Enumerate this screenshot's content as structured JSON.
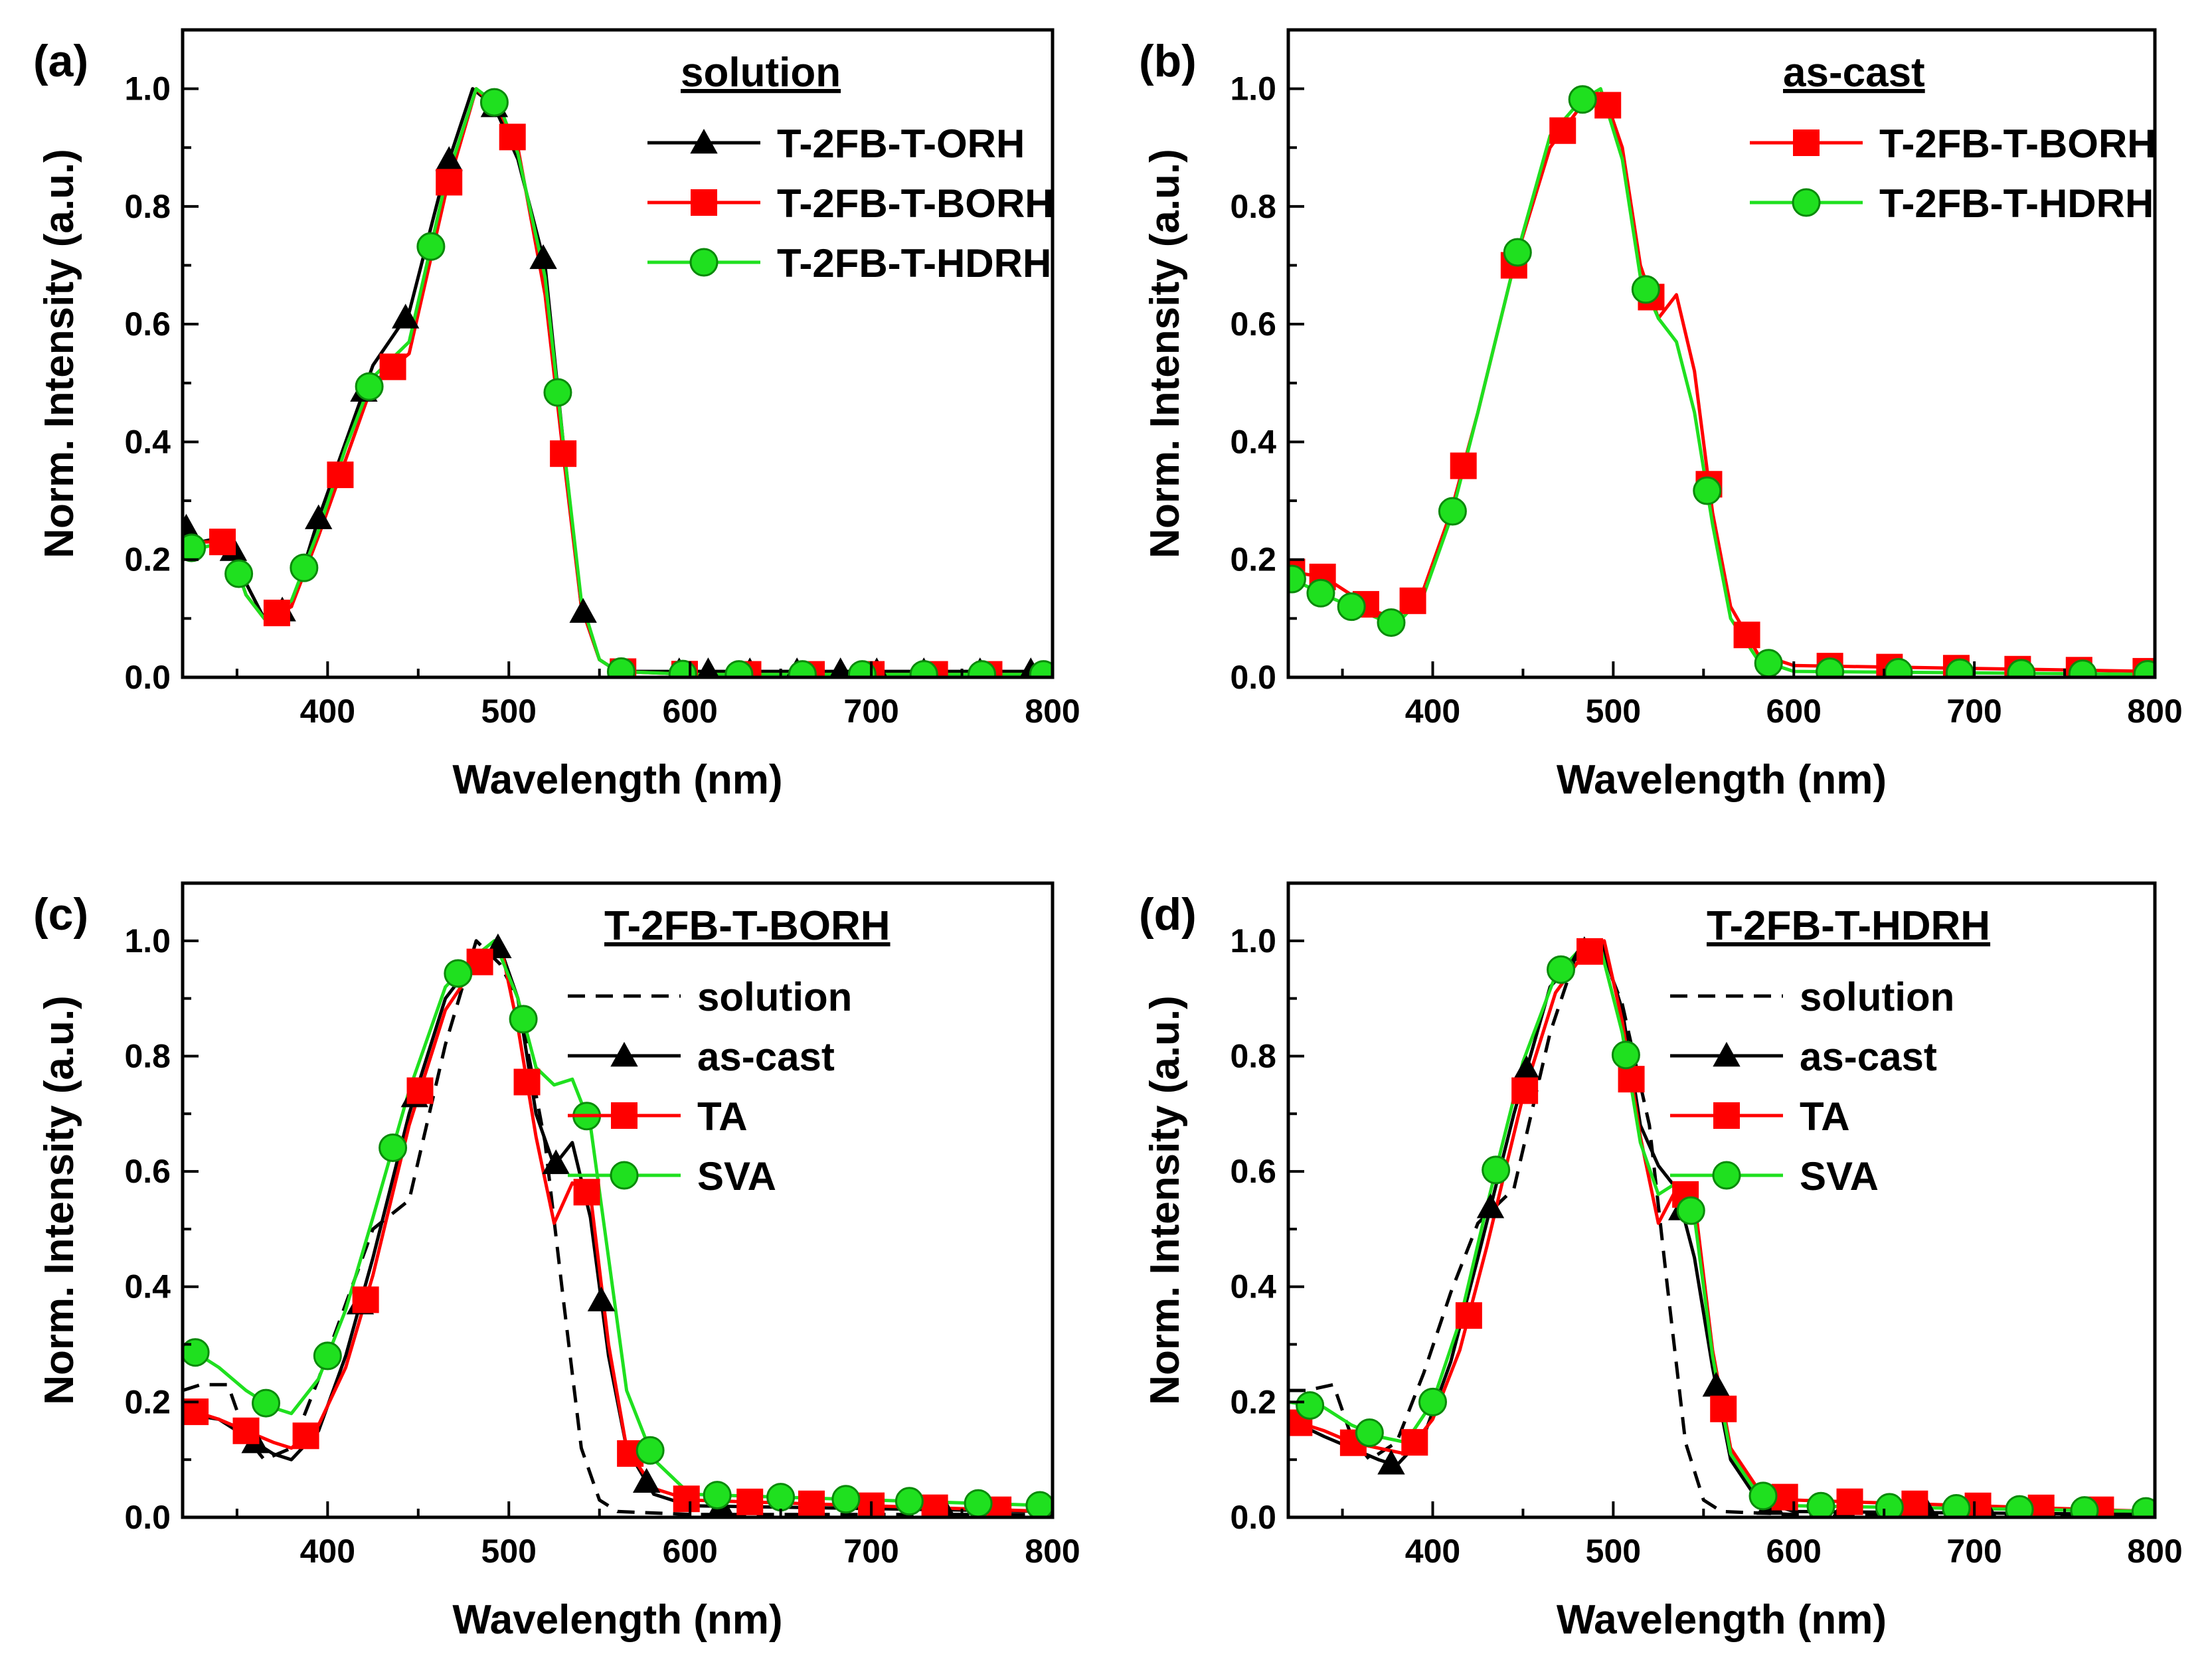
{
  "figure": {
    "colors": {
      "black": "#000000",
      "red": "#ff0000",
      "green": "#1fe01f",
      "marker_edge": "#0a8a0a"
    }
  },
  "chart_data": [
    {
      "panel": "(a)",
      "type": "line",
      "xlabel": "Wavelength (nm)",
      "ylabel": "Norm. Intensity (a.u.)",
      "xlim": [
        320,
        800
      ],
      "ylim": [
        0.0,
        1.1
      ],
      "xticks": [
        "400",
        "500",
        "600",
        "700",
        "800"
      ],
      "yticks": [
        "0.0",
        "0.2",
        "0.4",
        "0.6",
        "0.8",
        "1.0"
      ],
      "legend_title": "solution",
      "legend_position": "top-right",
      "series": [
        {
          "name": "T-2FB-T-ORH",
          "color": "#000000",
          "marker": "triangle",
          "dash": "solid",
          "x": [
            320,
            330,
            345,
            355,
            365,
            380,
            395,
            410,
            425,
            445,
            465,
            480,
            492,
            505,
            520,
            530,
            540,
            550,
            560,
            600,
            800
          ],
          "y": [
            0.26,
            0.23,
            0.24,
            0.16,
            0.1,
            0.12,
            0.27,
            0.4,
            0.53,
            0.62,
            0.86,
            1.0,
            0.97,
            0.88,
            0.7,
            0.4,
            0.12,
            0.03,
            0.01,
            0.01,
            0.01
          ],
          "markers_x": [
            322,
            348,
            375,
            395,
            420,
            443,
            467,
            492,
            519,
            541,
            562,
            594,
            610,
            633,
            659,
            683,
            703,
            729,
            760,
            788
          ]
        },
        {
          "name": "T-2FB-T-BORH",
          "color": "#ff0000",
          "marker": "square",
          "dash": "solid",
          "x": [
            320,
            330,
            345,
            355,
            365,
            380,
            395,
            410,
            425,
            445,
            465,
            482,
            495,
            505,
            520,
            530,
            540,
            550,
            560,
            600,
            800
          ],
          "y": [
            0.22,
            0.23,
            0.23,
            0.14,
            0.1,
            0.12,
            0.24,
            0.37,
            0.5,
            0.55,
            0.82,
            1.0,
            0.96,
            0.9,
            0.65,
            0.38,
            0.12,
            0.03,
            0.01,
            0.005,
            0.005
          ],
          "markers_x": [
            342,
            372,
            407,
            436,
            467,
            502,
            530,
            563,
            597,
            632,
            667,
            700,
            735,
            765
          ]
        },
        {
          "name": "T-2FB-T-HDRH",
          "color": "#1fe01f",
          "marker": "circle",
          "dash": "solid",
          "x": [
            320,
            330,
            345,
            355,
            365,
            380,
            395,
            410,
            425,
            445,
            465,
            482,
            495,
            505,
            520,
            530,
            540,
            550,
            560,
            600,
            800
          ],
          "y": [
            0.22,
            0.22,
            0.23,
            0.14,
            0.1,
            0.13,
            0.25,
            0.39,
            0.51,
            0.57,
            0.84,
            1.0,
            0.97,
            0.89,
            0.68,
            0.4,
            0.13,
            0.03,
            0.01,
            0.005,
            0.005
          ],
          "markers_x": [
            325,
            351,
            387,
            423,
            457,
            492,
            527,
            562,
            596,
            627,
            662,
            695,
            729,
            761,
            795
          ]
        }
      ]
    },
    {
      "panel": "(b)",
      "type": "line",
      "xlabel": "Wavelength (nm)",
      "ylabel": "Norm. Intensity (a.u.)",
      "xlim": [
        320,
        800
      ],
      "ylim": [
        0.0,
        1.1
      ],
      "xticks": [
        "400",
        "500",
        "600",
        "700",
        "800"
      ],
      "yticks": [
        "0.0",
        "0.2",
        "0.4",
        "0.6",
        "0.8",
        "1.0"
      ],
      "legend_title": "as-cast",
      "legend_position": "top-right",
      "series": [
        {
          "name": "T-2FB-T-BORH",
          "color": "#ff0000",
          "marker": "square",
          "dash": "solid",
          "x": [
            320,
            340,
            355,
            370,
            380,
            395,
            410,
            425,
            445,
            465,
            482,
            495,
            505,
            515,
            525,
            535,
            545,
            555,
            565,
            580,
            600,
            800
          ],
          "y": [
            0.18,
            0.17,
            0.14,
            0.11,
            0.1,
            0.15,
            0.28,
            0.45,
            0.7,
            0.9,
            0.97,
            0.99,
            0.9,
            0.7,
            0.61,
            0.65,
            0.52,
            0.28,
            0.12,
            0.04,
            0.02,
            0.01
          ],
          "markers_x": [
            322,
            339,
            363,
            389,
            417,
            445,
            472,
            497,
            521,
            553,
            574,
            620,
            653,
            690,
            724,
            758,
            795
          ]
        },
        {
          "name": "T-2FB-T-HDRH",
          "color": "#1fe01f",
          "marker": "circle",
          "dash": "solid",
          "x": [
            320,
            340,
            355,
            370,
            380,
            395,
            410,
            425,
            445,
            465,
            482,
            493,
            505,
            515,
            525,
            535,
            545,
            555,
            565,
            580,
            600,
            800
          ],
          "y": [
            0.17,
            0.14,
            0.12,
            0.1,
            0.09,
            0.14,
            0.27,
            0.45,
            0.7,
            0.92,
            0.98,
            1.0,
            0.88,
            0.68,
            0.61,
            0.57,
            0.45,
            0.26,
            0.1,
            0.03,
            0.01,
            0.005
          ],
          "markers_x": [
            322,
            338,
            355,
            377,
            411,
            447,
            483,
            518,
            552,
            586,
            620,
            658,
            692,
            726,
            760,
            796
          ]
        }
      ]
    },
    {
      "panel": "(c)",
      "type": "line",
      "xlabel": "Wavelength (nm)",
      "ylabel": "Norm. Intensity (a.u.)",
      "xlim": [
        320,
        800
      ],
      "ylim": [
        0.0,
        1.1
      ],
      "xticks": [
        "400",
        "500",
        "600",
        "700",
        "800"
      ],
      "yticks": [
        "0.0",
        "0.2",
        "0.4",
        "0.6",
        "0.8",
        "1.0"
      ],
      "legend_title": "T-2FB-T-BORH",
      "legend_position": "top-right",
      "series": [
        {
          "name": "solution",
          "color": "#000000",
          "marker": "none",
          "dash": "dashed",
          "x": [
            320,
            330,
            345,
            355,
            365,
            380,
            395,
            410,
            425,
            445,
            465,
            482,
            495,
            505,
            520,
            530,
            540,
            550,
            560,
            600,
            800
          ],
          "y": [
            0.22,
            0.23,
            0.23,
            0.14,
            0.1,
            0.12,
            0.24,
            0.37,
            0.5,
            0.55,
            0.82,
            1.0,
            0.96,
            0.9,
            0.65,
            0.38,
            0.12,
            0.03,
            0.01,
            0.005,
            0.005
          ],
          "markers_x": []
        },
        {
          "name": "as-cast",
          "color": "#000000",
          "marker": "triangle",
          "dash": "solid",
          "x": [
            320,
            340,
            355,
            370,
            380,
            395,
            410,
            425,
            445,
            465,
            482,
            495,
            505,
            515,
            525,
            535,
            545,
            555,
            565,
            580,
            600,
            800
          ],
          "y": [
            0.18,
            0.17,
            0.14,
            0.11,
            0.1,
            0.15,
            0.28,
            0.45,
            0.7,
            0.9,
            0.97,
            0.99,
            0.9,
            0.7,
            0.61,
            0.65,
            0.52,
            0.28,
            0.12,
            0.04,
            0.02,
            0.01
          ],
          "markers_x": [
            360,
            418,
            448,
            494,
            526,
            551,
            576,
            617,
            666,
            740,
            796
          ]
        },
        {
          "name": "TA",
          "color": "#ff0000",
          "marker": "square",
          "dash": "solid",
          "x": [
            320,
            340,
            355,
            370,
            380,
            395,
            410,
            425,
            445,
            465,
            480,
            495,
            505,
            515,
            525,
            535,
            545,
            555,
            565,
            580,
            600,
            800
          ],
          "y": [
            0.19,
            0.17,
            0.15,
            0.13,
            0.12,
            0.16,
            0.26,
            0.42,
            0.68,
            0.88,
            0.95,
            1.0,
            0.85,
            0.66,
            0.51,
            0.58,
            0.56,
            0.3,
            0.12,
            0.05,
            0.03,
            0.01
          ],
          "markers_x": [
            327,
            355,
            388,
            421,
            451,
            484,
            510,
            543,
            567,
            598,
            633,
            667,
            700,
            735,
            770
          ]
        },
        {
          "name": "SVA",
          "color": "#1fe01f",
          "marker": "circle",
          "dash": "solid",
          "x": [
            320,
            340,
            355,
            370,
            380,
            395,
            410,
            425,
            445,
            465,
            480,
            492,
            505,
            515,
            525,
            535,
            545,
            555,
            565,
            580,
            600,
            800
          ],
          "y": [
            0.3,
            0.26,
            0.22,
            0.19,
            0.18,
            0.24,
            0.36,
            0.52,
            0.74,
            0.92,
            0.97,
            1.0,
            0.9,
            0.78,
            0.75,
            0.76,
            0.68,
            0.45,
            0.22,
            0.1,
            0.04,
            0.02
          ],
          "markers_x": [
            327,
            366,
            400,
            436,
            472,
            508,
            543,
            578,
            615,
            650,
            686,
            721,
            759,
            793
          ]
        }
      ]
    },
    {
      "panel": "(d)",
      "type": "line",
      "xlabel": "Wavelength (nm)",
      "ylabel": "Norm. Intensity (a.u.)",
      "xlim": [
        320,
        800
      ],
      "ylim": [
        0.0,
        1.1
      ],
      "xticks": [
        "400",
        "500",
        "600",
        "700",
        "800"
      ],
      "yticks": [
        "0.0",
        "0.2",
        "0.4",
        "0.6",
        "0.8",
        "1.0"
      ],
      "legend_title": "T-2FB-T-HDRH",
      "legend_position": "top-right",
      "series": [
        {
          "name": "solution",
          "color": "#000000",
          "marker": "none",
          "dash": "dashed",
          "x": [
            320,
            330,
            345,
            355,
            365,
            380,
            395,
            410,
            425,
            445,
            465,
            482,
            495,
            505,
            520,
            530,
            540,
            550,
            560,
            600,
            800
          ],
          "y": [
            0.22,
            0.22,
            0.23,
            0.14,
            0.1,
            0.13,
            0.25,
            0.39,
            0.51,
            0.57,
            0.84,
            1.0,
            0.97,
            0.89,
            0.68,
            0.4,
            0.13,
            0.03,
            0.01,
            0.005,
            0.005
          ],
          "markers_x": []
        },
        {
          "name": "as-cast",
          "color": "#000000",
          "marker": "triangle",
          "dash": "solid",
          "x": [
            320,
            340,
            355,
            370,
            380,
            395,
            410,
            425,
            445,
            465,
            482,
            493,
            505,
            515,
            525,
            535,
            545,
            555,
            565,
            580,
            600,
            800
          ],
          "y": [
            0.17,
            0.14,
            0.12,
            0.1,
            0.09,
            0.14,
            0.27,
            0.45,
            0.7,
            0.92,
            0.98,
            1.0,
            0.88,
            0.68,
            0.61,
            0.57,
            0.45,
            0.26,
            0.1,
            0.03,
            0.01,
            0.005
          ],
          "markers_x": [
            377,
            432,
            452,
            484,
            538,
            557,
            587,
            627,
            674,
            707,
            740,
            797
          ]
        },
        {
          "name": "TA",
          "color": "#ff0000",
          "marker": "square",
          "dash": "solid",
          "x": [
            320,
            340,
            355,
            370,
            385,
            400,
            415,
            430,
            450,
            468,
            482,
            495,
            505,
            515,
            525,
            535,
            545,
            555,
            565,
            580,
            600,
            800
          ],
          "y": [
            0.17,
            0.15,
            0.13,
            0.12,
            0.11,
            0.17,
            0.29,
            0.47,
            0.73,
            0.91,
            0.97,
            1.0,
            0.86,
            0.66,
            0.51,
            0.57,
            0.55,
            0.29,
            0.12,
            0.05,
            0.03,
            0.01
          ],
          "markers_x": [
            326,
            356,
            390,
            420,
            451,
            487,
            510,
            540,
            561,
            595,
            631,
            667,
            702,
            737,
            770
          ]
        },
        {
          "name": "SVA",
          "color": "#1fe01f",
          "marker": "circle",
          "dash": "solid",
          "x": [
            320,
            340,
            355,
            370,
            385,
            400,
            415,
            430,
            450,
            468,
            480,
            492,
            505,
            515,
            525,
            535,
            545,
            555,
            565,
            580,
            600,
            800
          ],
          "y": [
            0.2,
            0.19,
            0.16,
            0.14,
            0.13,
            0.2,
            0.34,
            0.54,
            0.79,
            0.94,
            0.98,
            1.0,
            0.84,
            0.65,
            0.56,
            0.58,
            0.52,
            0.28,
            0.11,
            0.04,
            0.02,
            0.01
          ],
          "markers_x": [
            332,
            365,
            400,
            435,
            471,
            507,
            543,
            583,
            615,
            653,
            690,
            725,
            761,
            795
          ]
        }
      ]
    }
  ]
}
